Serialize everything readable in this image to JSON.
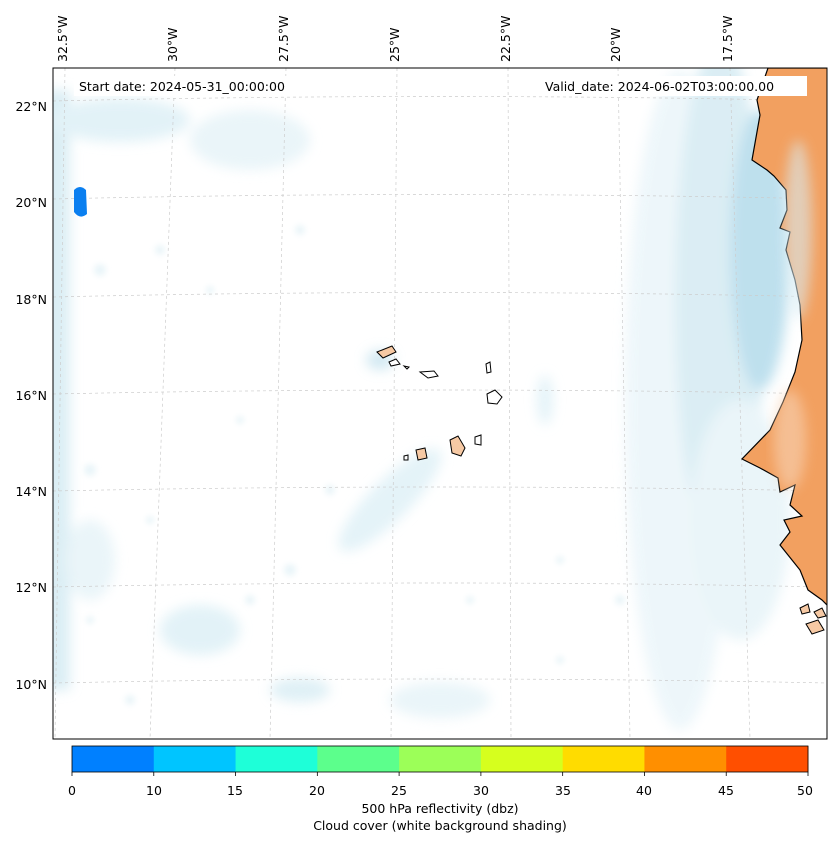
{
  "map": {
    "top_longitude_labels": [
      "32.5°W",
      "30°W",
      "27.5°W",
      "25°W",
      "22.5°W",
      "20°W",
      "17.5°W"
    ],
    "latitude_labels": [
      "22°N",
      "20°N",
      "18°N",
      "16°N",
      "14°N",
      "12°N",
      "10°N"
    ],
    "start_date": "Start date: 2024-05-31_00:00:00",
    "valid_date": "Valid_date: 2024-06-02T03:00:00.00",
    "colors": {
      "land": "#f2a060",
      "island": "#f6c9a4",
      "cloud": "#d4ebf3",
      "reflectivity_patch": "#0a7ff0",
      "graticule": "#c8c8c8"
    }
  },
  "colorbar": {
    "ticks": [
      "0",
      "10",
      "15",
      "20",
      "25",
      "30",
      "35",
      "40",
      "45",
      "50"
    ],
    "colors": [
      "#0080ff",
      "#00c5ff",
      "#1effd8",
      "#5cff8c",
      "#9cff58",
      "#d6ff1e",
      "#ffdc00",
      "#ff8f00",
      "#ff4f00"
    ],
    "label_line1": "500 hPa reflectivity (dbz)",
    "label_line2": "Cloud cover (white background shading)"
  }
}
